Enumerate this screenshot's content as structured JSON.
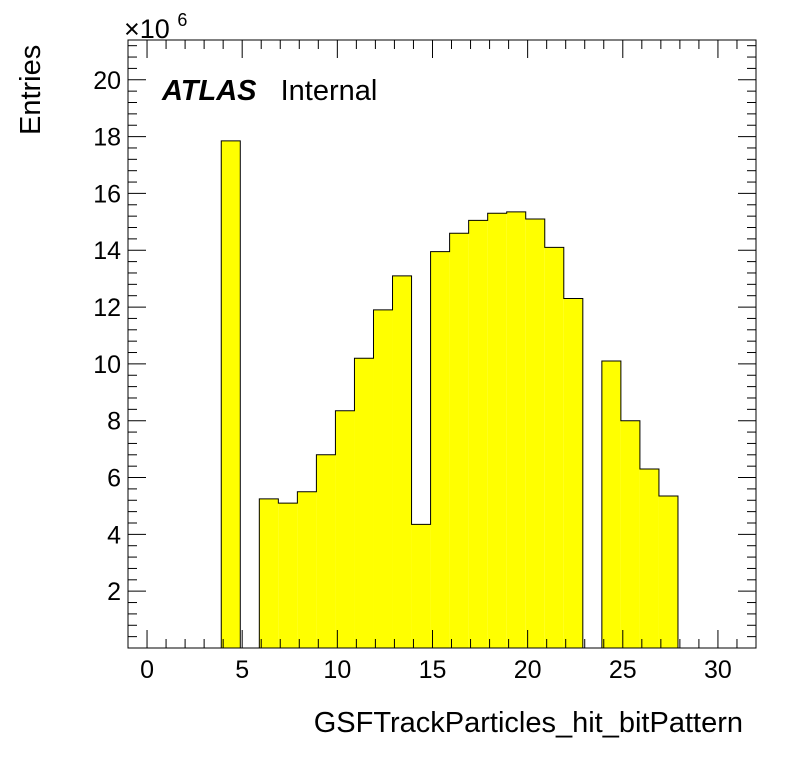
{
  "chart_data": {
    "type": "bar",
    "ylabel": "Entries",
    "xlabel": "GSFTrackParticles_hit_bitPattern",
    "multiplier": {
      "base": "×10",
      "exponent": "6"
    },
    "atlas_label": {
      "bold": "ATLAS",
      "status": "Internal"
    },
    "xlim": [
      -1,
      32
    ],
    "ylim": [
      0,
      21.4
    ],
    "y_unit_scale": 1000000,
    "xticks": [
      {
        "value": 0,
        "label": "0"
      },
      {
        "value": 5,
        "label": "5"
      },
      {
        "value": 10,
        "label": "10"
      },
      {
        "value": 15,
        "label": "15"
      },
      {
        "value": 20,
        "label": "20"
      },
      {
        "value": 25,
        "label": "25"
      },
      {
        "value": 30,
        "label": "30"
      }
    ],
    "yticks": [
      {
        "value": 2,
        "label": "2"
      },
      {
        "value": 4,
        "label": "4"
      },
      {
        "value": 6,
        "label": "6"
      },
      {
        "value": 8,
        "label": "8"
      },
      {
        "value": 10,
        "label": "10"
      },
      {
        "value": 12,
        "label": "12"
      },
      {
        "value": 14,
        "label": "14"
      },
      {
        "value": 16,
        "label": "16"
      },
      {
        "value": 18,
        "label": "18"
      },
      {
        "value": 20,
        "label": "20"
      }
    ],
    "bins": [
      {
        "x0": 3.9,
        "x1": 4.9,
        "value": 17.85
      },
      {
        "x0": 4.9,
        "x1": 5.9,
        "value": 0
      },
      {
        "x0": 5.9,
        "x1": 6.9,
        "value": 5.25
      },
      {
        "x0": 6.9,
        "x1": 7.9,
        "value": 5.1
      },
      {
        "x0": 7.9,
        "x1": 8.9,
        "value": 5.5
      },
      {
        "x0": 8.9,
        "x1": 9.9,
        "value": 6.8
      },
      {
        "x0": 9.9,
        "x1": 10.9,
        "value": 8.35
      },
      {
        "x0": 10.9,
        "x1": 11.9,
        "value": 10.2
      },
      {
        "x0": 11.9,
        "x1": 12.9,
        "value": 11.9
      },
      {
        "x0": 12.9,
        "x1": 13.9,
        "value": 13.1
      },
      {
        "x0": 13.9,
        "x1": 14.9,
        "value": 4.35
      },
      {
        "x0": 14.9,
        "x1": 15.9,
        "value": 13.95
      },
      {
        "x0": 15.9,
        "x1": 16.9,
        "value": 14.6
      },
      {
        "x0": 16.9,
        "x1": 17.9,
        "value": 15.05
      },
      {
        "x0": 17.9,
        "x1": 18.9,
        "value": 15.3
      },
      {
        "x0": 18.9,
        "x1": 19.9,
        "value": 15.35
      },
      {
        "x0": 19.9,
        "x1": 20.9,
        "value": 15.1
      },
      {
        "x0": 20.9,
        "x1": 21.9,
        "value": 14.1
      },
      {
        "x0": 21.9,
        "x1": 22.9,
        "value": 12.3
      },
      {
        "x0": 22.9,
        "x1": 23.9,
        "value": 0
      },
      {
        "x0": 23.9,
        "x1": 24.9,
        "value": 10.1
      },
      {
        "x0": 24.9,
        "x1": 25.9,
        "value": 8.0
      },
      {
        "x0": 25.9,
        "x1": 26.9,
        "value": 6.3
      },
      {
        "x0": 26.9,
        "x1": 27.9,
        "value": 5.35
      }
    ],
    "fill_color": "#ffff00",
    "line_color": "#000000",
    "grid": false,
    "legend": "none"
  }
}
